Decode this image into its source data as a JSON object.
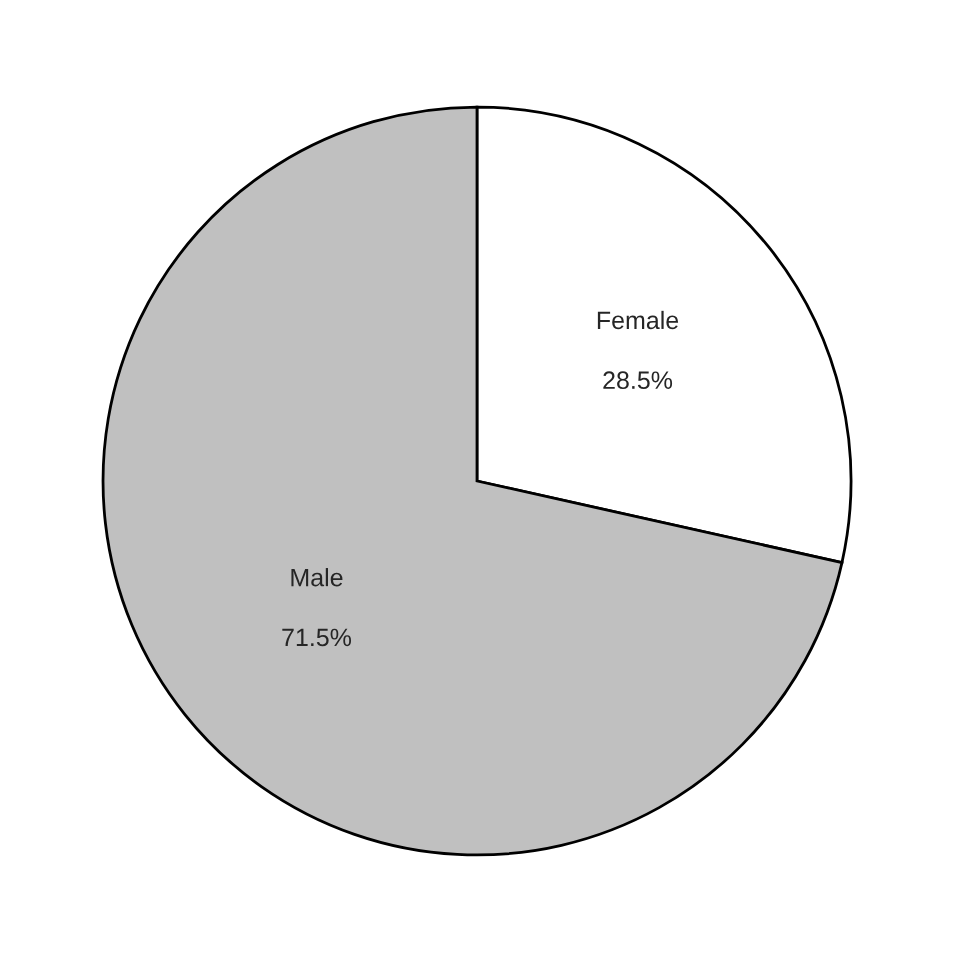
{
  "chart_data": {
    "type": "pie",
    "categories": [
      "Female",
      "Male"
    ],
    "values": [
      28.5,
      71.5
    ],
    "colors": [
      "#ffffff",
      "#c0c0c0"
    ],
    "value_labels": [
      "28.5%",
      "71.5%"
    ],
    "legend": false
  }
}
